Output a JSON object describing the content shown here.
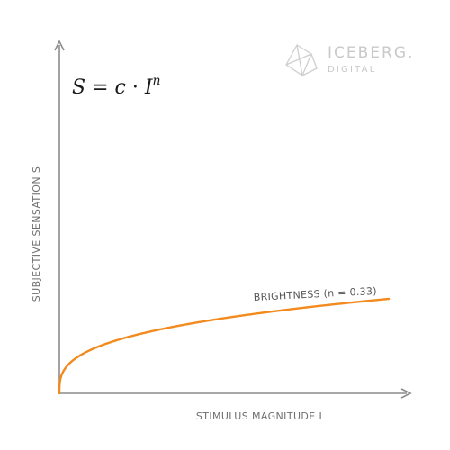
{
  "brand": {
    "name": "ICEBERG.",
    "sub": "DIGITAL",
    "icon": "iceberg-logo-icon"
  },
  "formula": {
    "lhs": "S",
    "c": "c",
    "I": "I",
    "exponent": "n"
  },
  "chart_data": {
    "type": "line",
    "title": "",
    "xlabel": "STIMULUS MAGNITUDE I",
    "ylabel": "SUBJECTIVE SENSATION S",
    "x_ticks": [],
    "y_ticks": [],
    "grid": false,
    "series": [
      {
        "name": "BRIGHTNESS (n = 0.33)",
        "function": "y = x^0.33",
        "exponent": 0.33,
        "color": "#f28a1e",
        "x": [
          0,
          0.0025,
          0.01,
          0.05,
          0.1,
          0.2,
          0.3,
          0.4,
          0.5,
          0.6,
          0.7,
          0.8,
          0.9,
          1.0
        ],
        "y": [
          0,
          0.138,
          0.219,
          0.372,
          0.468,
          0.588,
          0.672,
          0.739,
          0.795,
          0.845,
          0.889,
          0.929,
          0.966,
          1.0
        ]
      }
    ],
    "colors": {
      "axis": "#8c8c8c",
      "curve": "#f28a1e"
    }
  }
}
